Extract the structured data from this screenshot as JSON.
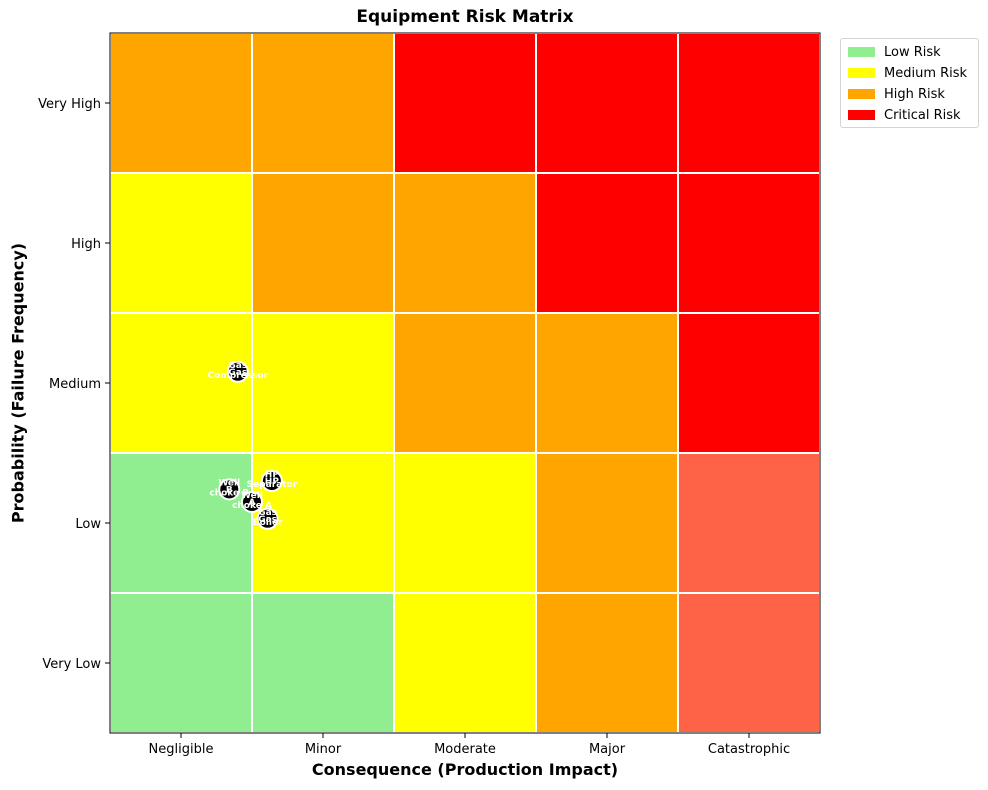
{
  "chart_data": {
    "type": "heatmap",
    "title": "Equipment Risk Matrix",
    "xlabel": "Consequence (Production Impact)",
    "ylabel": "Probability (Failure Frequency)",
    "x_categories": [
      "Negligible",
      "Minor",
      "Moderate",
      "Major",
      "Catastrophic"
    ],
    "y_categories": [
      "Very Low",
      "Low",
      "Medium",
      "High",
      "Very High"
    ],
    "cell_levels": [
      [
        "low",
        "low",
        "medium",
        "high",
        "critical_light"
      ],
      [
        "low",
        "medium",
        "medium",
        "high",
        "critical_light"
      ],
      [
        "medium",
        "medium",
        "high",
        "high",
        "critical"
      ],
      [
        "medium",
        "high",
        "high",
        "critical",
        "critical"
      ],
      [
        "high",
        "high",
        "critical",
        "critical",
        "critical"
      ]
    ],
    "level_colors": {
      "low": "#90ee90",
      "medium": "#ffff00",
      "high": "#ffa500",
      "critical": "#ff0000",
      "critical_light": "#ff6347"
    },
    "legend": {
      "placement": "outside-top-right",
      "entries": [
        {
          "label": "Low Risk",
          "color": "#90ee90"
        },
        {
          "label": "Medium Risk",
          "color": "#ffff00"
        },
        {
          "label": "High Risk",
          "color": "#ffa500"
        },
        {
          "label": "Critical Risk",
          "color": "#ff0000"
        }
      ]
    },
    "points": [
      {
        "marker": "Gas",
        "label": "Gas\nCompressor",
        "x": 0.4,
        "y": 2.08
      },
      {
        "marker": "HP",
        "label": "HP\nSeparator",
        "x": 0.64,
        "y": 1.3
      },
      {
        "marker": "B",
        "label": "Well\nchoke B",
        "x": 0.34,
        "y": 1.24
      },
      {
        "marker": "A",
        "label": "Well\nchoke A",
        "x": 0.5,
        "y": 1.15
      },
      {
        "marker": "Gas",
        "label": "Gas\nBoiler",
        "x": 0.61,
        "y": 1.03
      }
    ],
    "xlim": [
      -0.5,
      4.5
    ],
    "ylim": [
      -0.5,
      4.5
    ],
    "grid": false,
    "colors": {
      "point_fill": "#000000",
      "point_edge": "#ffffff",
      "point_text": "#ffffff",
      "cell_border": "#ffffff"
    }
  }
}
